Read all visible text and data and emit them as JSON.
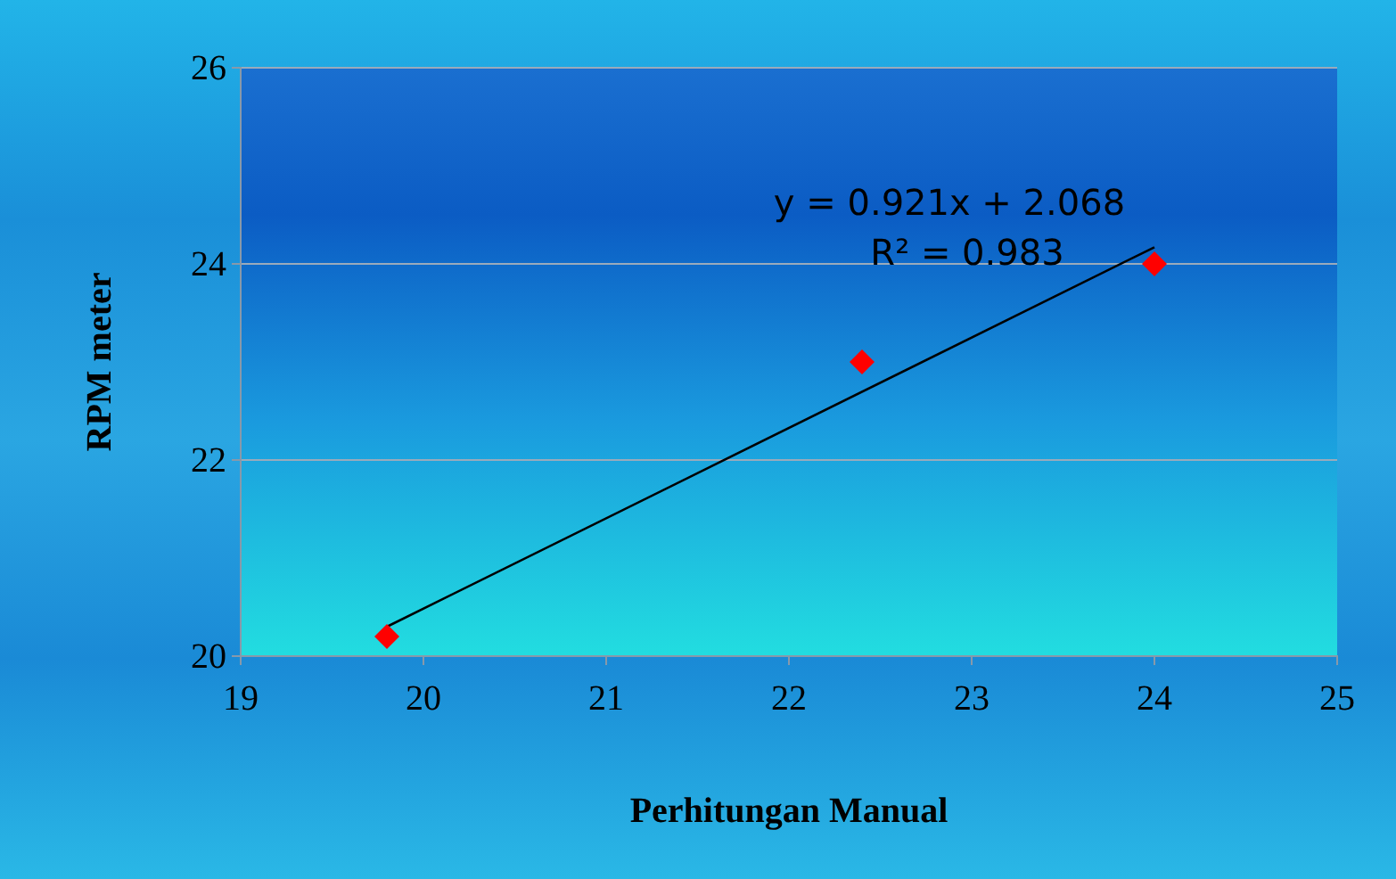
{
  "chart_data": {
    "type": "scatter",
    "xlabel": "Perhitungan Manual",
    "ylabel": "RPM meter",
    "xlim": [
      19,
      25
    ],
    "xticks": [
      19,
      20,
      21,
      22,
      23,
      24,
      25
    ],
    "ylim": [
      20,
      26
    ],
    "yticks": [
      20,
      22,
      24,
      26
    ],
    "grid": "y",
    "series": [
      {
        "marker": "diamond",
        "color": "#ff0000",
        "x": [
          19.8,
          22.4,
          24.0
        ],
        "values": [
          20.2,
          23.0,
          24.0
        ]
      },
      {
        "type": "line",
        "marker": "none",
        "color": "#000000",
        "x": [
          19.8,
          24.0
        ],
        "values": [
          20.3,
          24.17
        ]
      }
    ],
    "annotations": [
      "y = 0.921x + 2.068",
      "R² = 0.983"
    ]
  }
}
